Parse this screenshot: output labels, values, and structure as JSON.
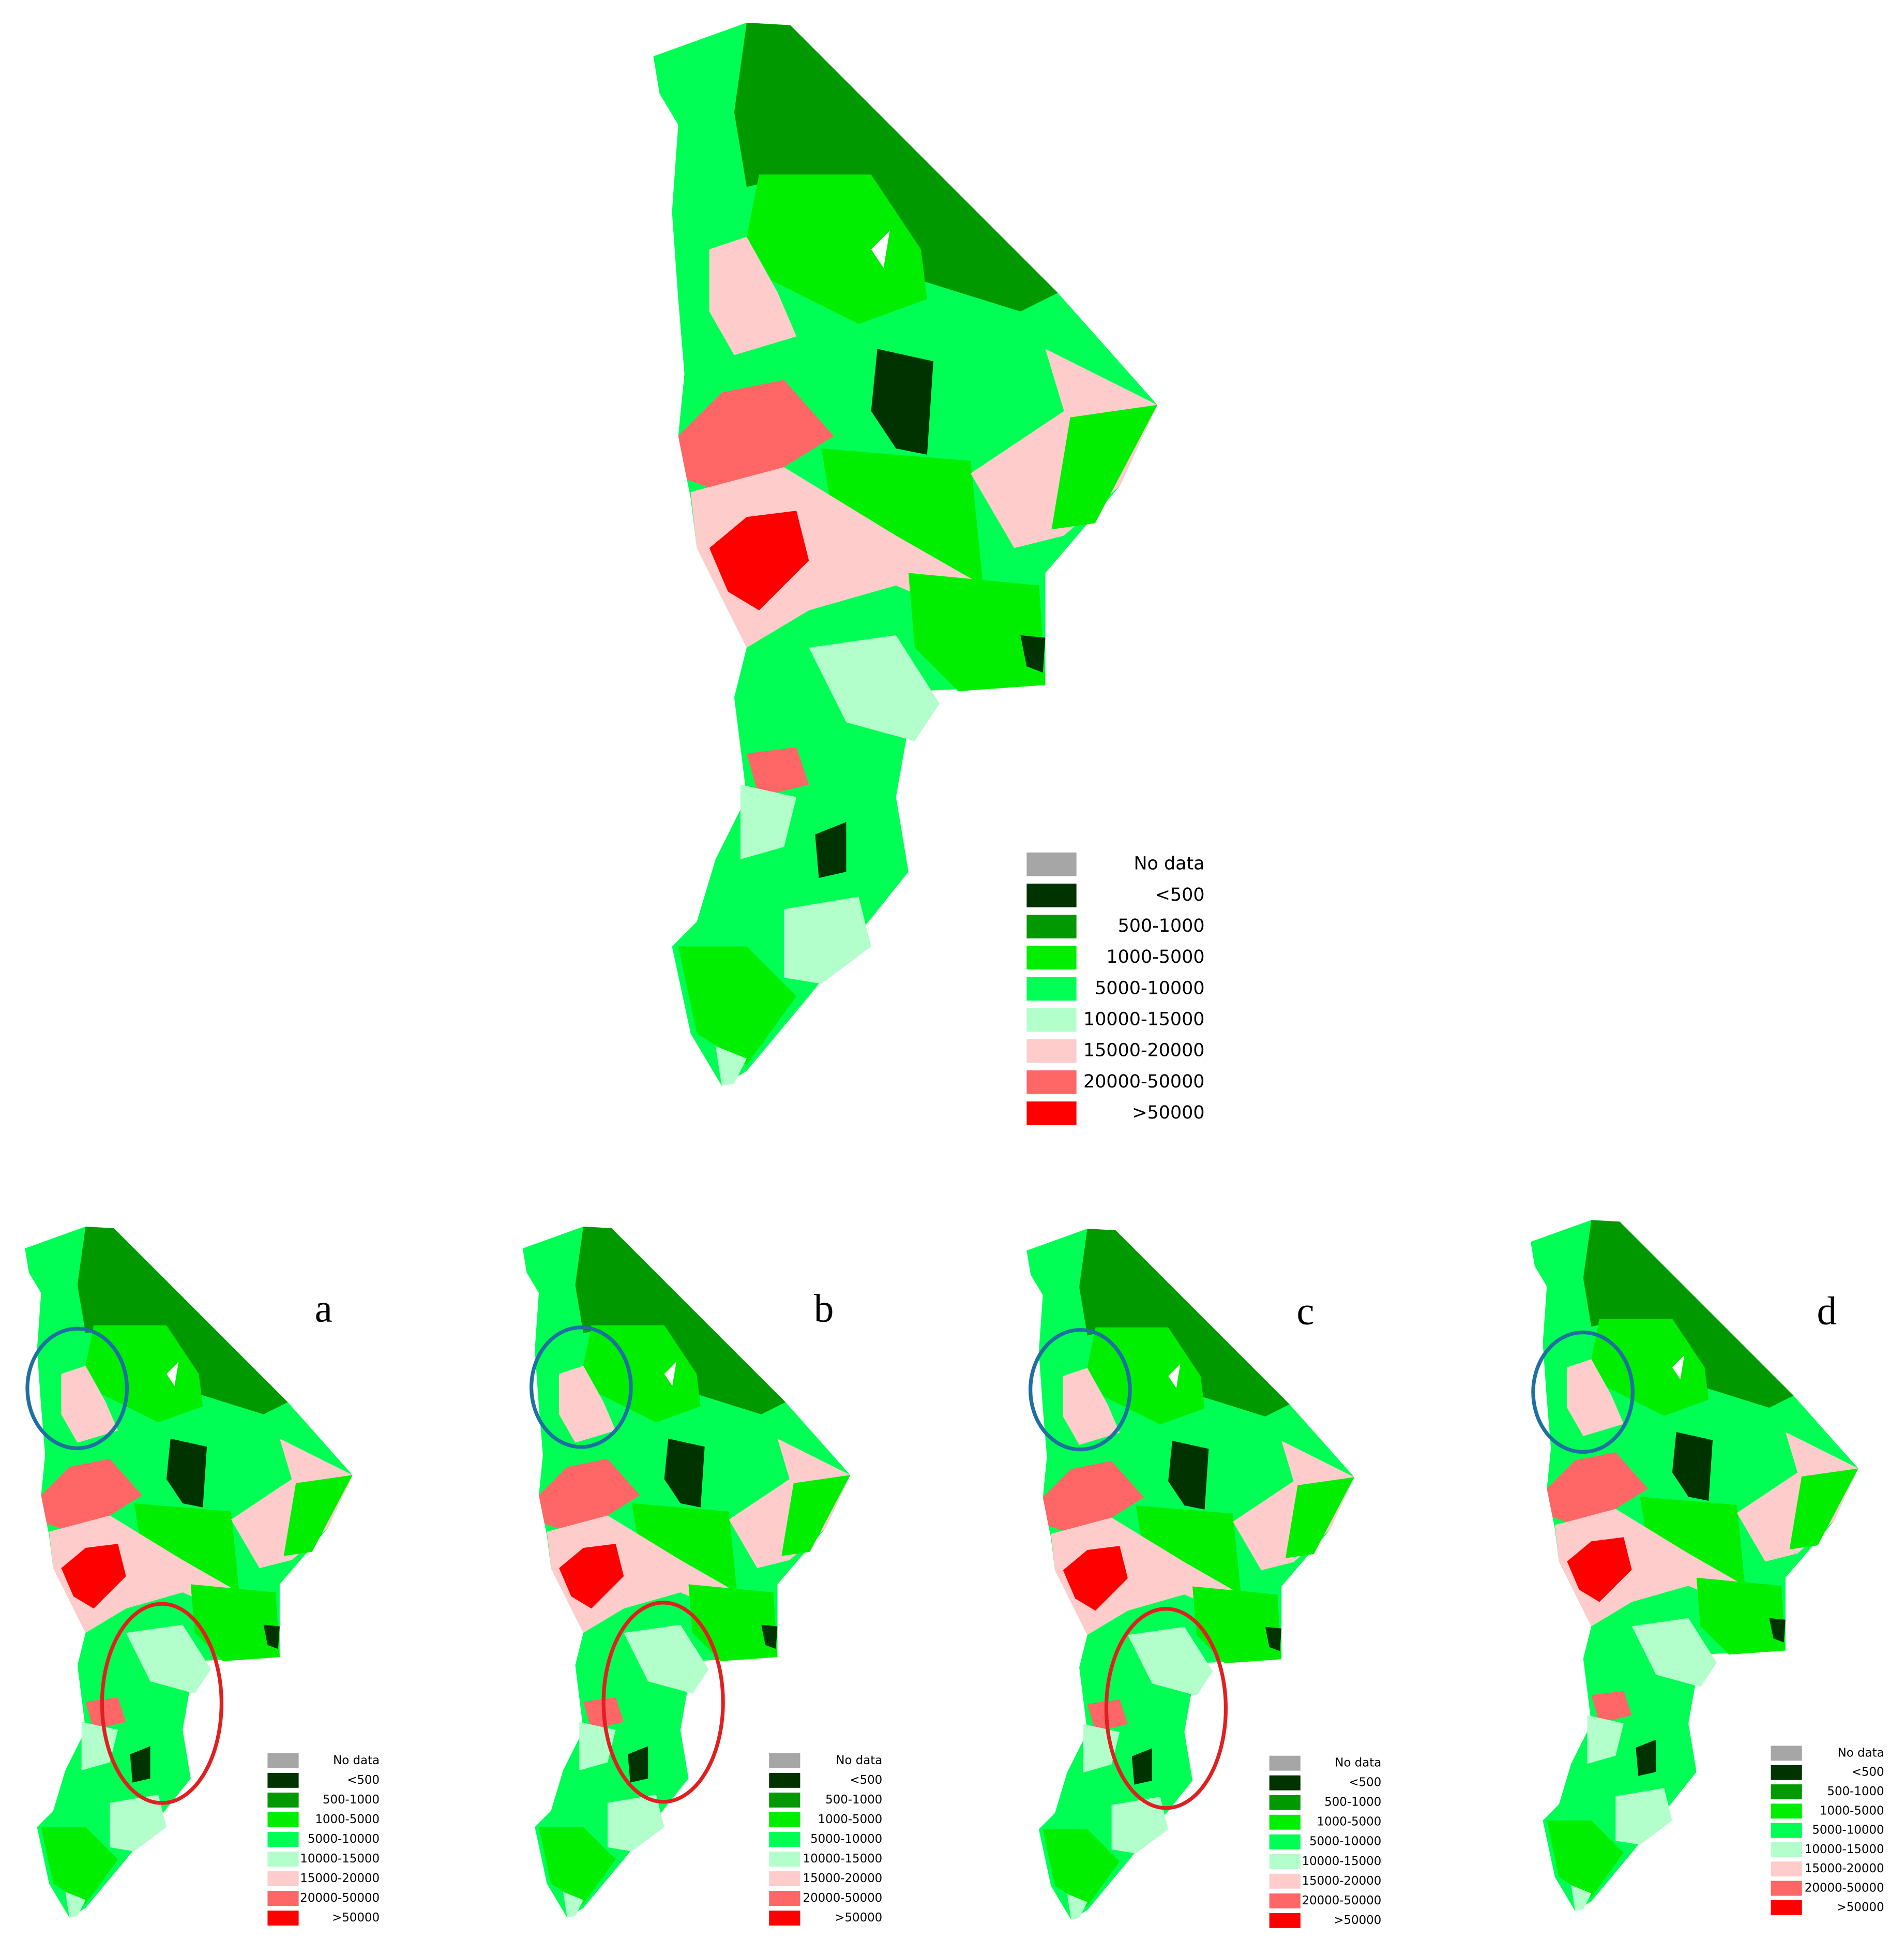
{
  "legend": {
    "items": [
      {
        "label": "No data",
        "color": "#a6a6a6"
      },
      {
        "label": "<500",
        "color": "#003300"
      },
      {
        "label": "500-1000",
        "color": "#009900"
      },
      {
        "label": "1000-5000",
        "color": "#00ee00"
      },
      {
        "label": "5000-10000",
        "color": "#00ff55"
      },
      {
        "label": "10000-15000",
        "color": "#b3ffcc"
      },
      {
        "label": "15000-20000",
        "color": "#ffcccc"
      },
      {
        "label": "20000-50000",
        "color": "#ff6666"
      },
      {
        "label": ">50000",
        "color": "#ff0000"
      }
    ]
  },
  "panels": [
    {
      "label": "a"
    },
    {
      "label": "b"
    },
    {
      "label": "c"
    },
    {
      "label": "d"
    }
  ]
}
